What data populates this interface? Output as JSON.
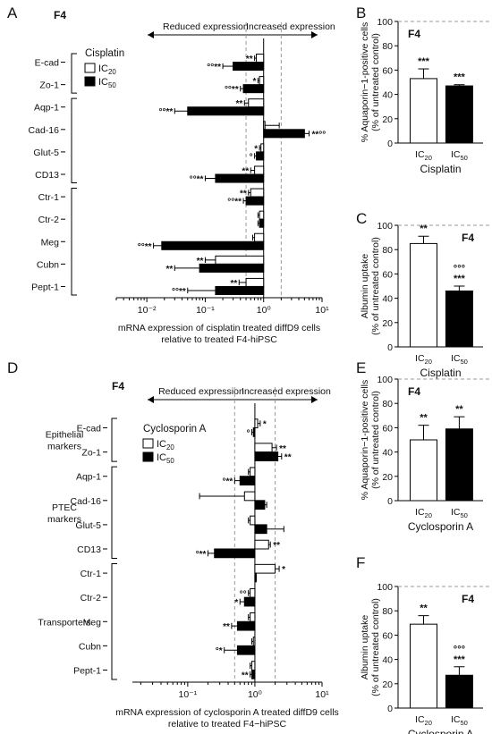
{
  "panel_labels": [
    "A",
    "B",
    "C",
    "D",
    "E",
    "F"
  ],
  "colors": {
    "ic20": "#ffffff",
    "ic50": "#000000",
    "stroke": "#000000",
    "refline": "#9a9a9a"
  },
  "chart_data": [
    {
      "panel": "A",
      "type": "bar",
      "orientation": "horizontal",
      "scale": "log",
      "title": "F4",
      "xlim": [
        0.003,
        10
      ],
      "xticks": [
        "10⁻²",
        "10⁻¹",
        "10⁰",
        "10¹"
      ],
      "xlabel_lines": [
        "mRNA expression of cisplatin treated diffD9 cells",
        "relative to treated F4-hiPSC"
      ],
      "arrow_left": "Reduced expression",
      "arrow_right": "Increased expression",
      "ref_lines": [
        0.5,
        2
      ],
      "legend_title": "Cisplatin",
      "legend": [
        "IC20",
        "IC50"
      ],
      "group_labels": [],
      "categories": [
        "E-cad",
        "Zo-1",
        "Aqp-1",
        "Cad-16",
        "Glut-5",
        "CD13",
        "Ctr-1",
        "Ctr-2",
        "Meg",
        "Cubn",
        "Pept-1"
      ],
      "series": [
        {
          "name": "IC20",
          "values": [
            0.75,
            0.85,
            0.55,
            1.05,
            0.9,
            0.7,
            0.6,
            0.85,
            0.7,
            0.15,
            0.5
          ],
          "errors": [
            0.05,
            0.05,
            0.08,
            0.8,
            0.05,
            0.1,
            0.05,
            0.05,
            0.05,
            0.05,
            0.12
          ]
        },
        {
          "name": "IC50",
          "values": [
            0.3,
            0.45,
            0.05,
            5,
            0.75,
            0.15,
            0.5,
            0.85,
            0.018,
            0.08,
            0.15
          ],
          "errors": [
            0.1,
            0.05,
            0.02,
            1,
            0.05,
            0.05,
            0.05,
            0.05,
            0.005,
            0.05,
            0.1
          ]
        }
      ],
      "annotations": [
        [
          "**",
          "°°**"
        ],
        [
          "*",
          "°°**"
        ],
        [
          "**",
          "°°**"
        ],
        [
          "",
          "**°°"
        ],
        [
          "*",
          "°"
        ],
        [
          "**",
          "°°**"
        ],
        [
          "**",
          "°°**"
        ],
        [
          "",
          ""
        ],
        [
          "",
          "°°**"
        ],
        [
          "**",
          "**"
        ],
        [
          "**",
          "°°**"
        ]
      ]
    },
    {
      "panel": "B",
      "type": "bar",
      "title": "F4",
      "ylabel_lines": [
        "% Aquaporin−1-positive cells",
        "(% of untreated control)"
      ],
      "ylim": [
        0,
        100
      ],
      "yticks": [
        "0",
        "20",
        "40",
        "60",
        "80",
        "100"
      ],
      "categories": [
        "IC20",
        "IC50"
      ],
      "values": [
        53,
        47
      ],
      "errors": [
        8,
        1
      ],
      "xlabel": "Cisplatin",
      "annotations": [
        [
          "***"
        ],
        [
          "***"
        ]
      ]
    },
    {
      "panel": "C",
      "type": "bar",
      "title": "F4",
      "ylabel_lines": [
        "Albumin uptake",
        "(% of untreated control)"
      ],
      "ylim": [
        0,
        100
      ],
      "yticks": [
        "0",
        "20",
        "40",
        "60",
        "80",
        "100"
      ],
      "categories": [
        "IC20",
        "IC50"
      ],
      "values": [
        85,
        46
      ],
      "errors": [
        6,
        4
      ],
      "xlabel": "Cisplatin",
      "annotations": [
        [
          "**"
        ],
        [
          "°°°",
          "***"
        ]
      ]
    },
    {
      "panel": "D",
      "type": "bar",
      "orientation": "horizontal",
      "scale": "log",
      "title": "F4",
      "xlim": [
        0.015,
        10
      ],
      "xticks": [
        "10⁻¹",
        "10⁰",
        "10¹"
      ],
      "xlabel_lines": [
        "mRNA expression of cyclosporin A treated diffD9 cells",
        "relative to treated F4−hiPSC"
      ],
      "arrow_left": "Reduced expression",
      "arrow_right": "Increased expression",
      "ref_lines": [
        0.5,
        2
      ],
      "legend_title": "Cyclosporin A",
      "legend": [
        "IC20",
        "IC50"
      ],
      "group_labels": [
        {
          "lines": [
            "Epithelial",
            "markers"
          ],
          "from": 0,
          "to": 1
        },
        {
          "lines": [
            "PTEC",
            "markers"
          ],
          "from": 2,
          "to": 5
        },
        {
          "lines": [
            "Transporters"
          ],
          "from": 6,
          "to": 10
        }
      ],
      "categories": [
        "E-cad",
        "Zo-1",
        "Aqp-1",
        "Cad-16",
        "Glut-5",
        "CD13",
        "Ctr-1",
        "Ctr-2",
        "Meg",
        "Cubn",
        "Pept-1"
      ],
      "series": [
        {
          "name": "IC20",
          "values": [
            1.1,
            1.8,
            0.85,
            0.7,
            0.85,
            1.6,
            2,
            0.85,
            0.85,
            0.95,
            0.9
          ],
          "errors": [
            0.1,
            0.3,
            0.05,
            0.55,
            0.05,
            0.1,
            0.3,
            0.05,
            0.05,
            0.05,
            0.05
          ]
        },
        {
          "name": "IC50",
          "values": [
            0.95,
            2.2,
            0.6,
            1.4,
            1.5,
            0.25,
            1.0,
            0.7,
            0.55,
            0.55,
            0.9
          ],
          "errors": [
            0.05,
            0.3,
            0.1,
            0.1,
            1.2,
            0.05,
            0.05,
            0.1,
            0.1,
            0.2,
            0.05
          ]
        }
      ],
      "annotations": [
        [
          "*",
          "°"
        ],
        [
          "**",
          "**"
        ],
        [
          "",
          "°**"
        ],
        [
          "",
          ""
        ],
        [
          "",
          ""
        ],
        [
          "**",
          "°**"
        ],
        [
          "*",
          ""
        ],
        [
          "°°",
          "*"
        ],
        [
          "",
          "**"
        ],
        [
          "",
          "°*"
        ],
        [
          "",
          "**"
        ]
      ]
    },
    {
      "panel": "E",
      "type": "bar",
      "title": "F4",
      "ylabel_lines": [
        "% Aquaporin−1-positive cells",
        "(% of untreated control)"
      ],
      "ylim": [
        0,
        100
      ],
      "yticks": [
        "0",
        "20",
        "40",
        "60",
        "80",
        "100"
      ],
      "categories": [
        "IC20",
        "IC50"
      ],
      "values": [
        50,
        59
      ],
      "errors": [
        12,
        10
      ],
      "xlabel": "Cyclosporin A",
      "annotations": [
        [
          "**"
        ],
        [
          "**"
        ]
      ]
    },
    {
      "panel": "F",
      "type": "bar",
      "title": "F4",
      "ylabel_lines": [
        "Albumin uptake",
        "(% of untreated control)"
      ],
      "ylim": [
        0,
        100
      ],
      "yticks": [
        "0",
        "20",
        "40",
        "60",
        "80",
        "100"
      ],
      "categories": [
        "IC20",
        "IC50"
      ],
      "values": [
        69,
        27
      ],
      "errors": [
        7,
        7
      ],
      "xlabel": "Cyclosporin A",
      "annotations": [
        [
          "**"
        ],
        [
          "°°°",
          "***"
        ]
      ]
    }
  ]
}
